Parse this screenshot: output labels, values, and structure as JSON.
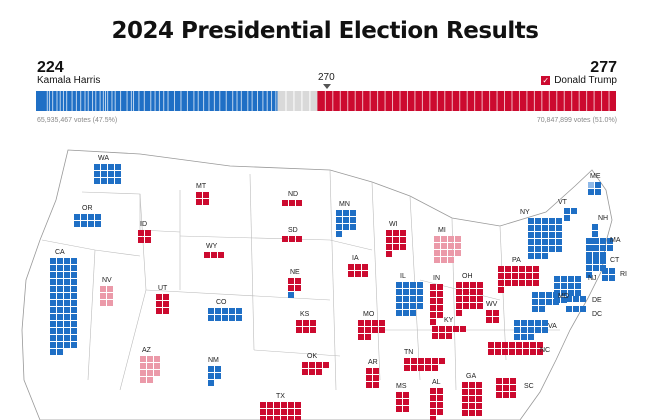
{
  "page": {
    "title": "2024 Presidential Election Results"
  },
  "harris": {
    "electoral_votes": "224",
    "name": "Kamala Harris",
    "popular_vote": "65,935,467 votes (47.5%)",
    "color": "#1f6fc5",
    "light_color": "#8fb9e8"
  },
  "trump": {
    "electoral_votes": "277",
    "name": "Donald Trump",
    "popular_vote": "70,847,899 votes (51.0%)",
    "color": "#cc0a2f",
    "light_color": "#eb9aa9",
    "winner_check": "✓"
  },
  "threshold": {
    "label": "270"
  },
  "bar": {
    "total": 538,
    "harris": 224,
    "trump": 277,
    "undecided": 37,
    "undecided_color": "#d9d9d9"
  },
  "states": [
    {
      "abbr": "WA",
      "party": "D"
    },
    {
      "abbr": "OR",
      "party": "D"
    },
    {
      "abbr": "CA",
      "party": "D"
    },
    {
      "abbr": "NV",
      "party": "R-light"
    },
    {
      "abbr": "ID",
      "party": "R"
    },
    {
      "abbr": "MT",
      "party": "R"
    },
    {
      "abbr": "WY",
      "party": "R"
    },
    {
      "abbr": "UT",
      "party": "R"
    },
    {
      "abbr": "CO",
      "party": "D"
    },
    {
      "abbr": "AZ",
      "party": "R-light"
    },
    {
      "abbr": "NM",
      "party": "D"
    },
    {
      "abbr": "ND",
      "party": "R"
    },
    {
      "abbr": "SD",
      "party": "R"
    },
    {
      "abbr": "NE",
      "party": "R"
    },
    {
      "abbr": "KS",
      "party": "R"
    },
    {
      "abbr": "OK",
      "party": "R"
    },
    {
      "abbr": "TX",
      "party": "R"
    },
    {
      "abbr": "MN",
      "party": "D"
    },
    {
      "abbr": "IA",
      "party": "R"
    },
    {
      "abbr": "MO",
      "party": "R"
    },
    {
      "abbr": "AR",
      "party": "R"
    },
    {
      "abbr": "WI",
      "party": "R"
    },
    {
      "abbr": "IL",
      "party": "D"
    },
    {
      "abbr": "MI",
      "party": "R-light"
    },
    {
      "abbr": "IN",
      "party": "R"
    },
    {
      "abbr": "OH",
      "party": "R"
    },
    {
      "abbr": "KY",
      "party": "R"
    },
    {
      "abbr": "TN",
      "party": "R"
    },
    {
      "abbr": "MS",
      "party": "R"
    },
    {
      "abbr": "AL",
      "party": "R"
    },
    {
      "abbr": "GA",
      "party": "R"
    },
    {
      "abbr": "SC",
      "party": "R"
    },
    {
      "abbr": "NC",
      "party": "R"
    },
    {
      "abbr": "VA",
      "party": "D"
    },
    {
      "abbr": "WV",
      "party": "R"
    },
    {
      "abbr": "PA",
      "party": "R"
    },
    {
      "abbr": "NY",
      "party": "D"
    },
    {
      "abbr": "VT",
      "party": "D"
    },
    {
      "abbr": "NH",
      "party": "D"
    },
    {
      "abbr": "ME",
      "party": "D"
    },
    {
      "abbr": "MA",
      "party": "D"
    },
    {
      "abbr": "CT",
      "party": "D"
    },
    {
      "abbr": "RI",
      "party": "D"
    },
    {
      "abbr": "NJ",
      "party": "D"
    },
    {
      "abbr": "DE",
      "party": "D"
    },
    {
      "abbr": "MD",
      "party": "D"
    },
    {
      "abbr": "DC",
      "party": "D"
    }
  ]
}
